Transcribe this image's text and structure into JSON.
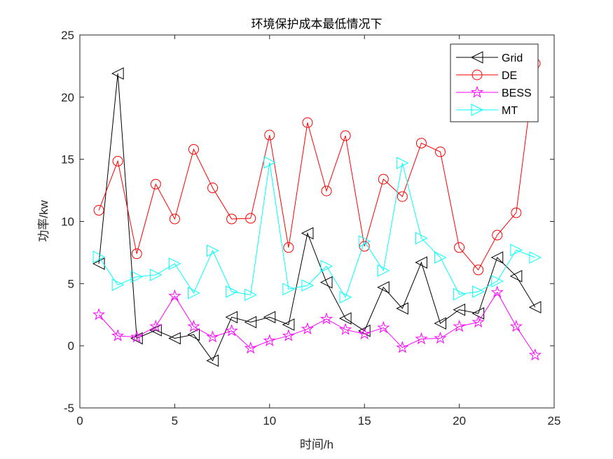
{
  "chart_data": {
    "type": "line",
    "title": "环境保护成本最低情况下",
    "xlabel": "时间/h",
    "ylabel": "功率/kw",
    "xlim": [
      0,
      25
    ],
    "ylim": [
      -5,
      25
    ],
    "xticks": [
      "0",
      "5",
      "10",
      "15",
      "20",
      "25"
    ],
    "yticks": [
      "-5",
      "0",
      "5",
      "10",
      "15",
      "20",
      "25"
    ],
    "grid": false,
    "legend_position": "top-right",
    "x": [
      1,
      2,
      3,
      4,
      5,
      6,
      7,
      8,
      9,
      10,
      11,
      12,
      13,
      14,
      15,
      16,
      17,
      18,
      19,
      20,
      21,
      22,
      23,
      24
    ],
    "series": [
      {
        "name": "Grid",
        "color": "#000000",
        "marker": "triangle-left",
        "values": [
          6.6,
          21.9,
          0.6,
          1.25,
          0.6,
          0.9,
          -1.2,
          2.3,
          1.9,
          2.3,
          1.7,
          9.05,
          5.1,
          2.2,
          1.2,
          4.7,
          3.0,
          6.7,
          1.8,
          2.9,
          2.6,
          7.1,
          5.6,
          3.1
        ]
      },
      {
        "name": "DE",
        "color": "#ff0000",
        "marker": "circle",
        "values": [
          10.9,
          14.85,
          7.4,
          13.0,
          10.2,
          15.8,
          12.7,
          10.2,
          10.25,
          16.95,
          7.9,
          17.95,
          12.45,
          16.9,
          8.0,
          13.4,
          12.0,
          16.3,
          15.6,
          7.9,
          6.1,
          8.9,
          10.7,
          22.7
        ]
      },
      {
        "name": "BESS",
        "color": "#ff00ff",
        "marker": "star",
        "values": [
          2.5,
          0.8,
          0.7,
          1.55,
          4.0,
          1.55,
          0.7,
          1.2,
          -0.2,
          0.4,
          0.8,
          1.35,
          2.15,
          1.3,
          0.95,
          1.45,
          -0.15,
          0.55,
          0.6,
          1.55,
          1.9,
          4.3,
          1.55,
          -0.75
        ]
      },
      {
        "name": "MT",
        "color": "#00ffff",
        "marker": "triangle-right",
        "values": [
          7.15,
          4.9,
          5.55,
          5.7,
          6.6,
          4.25,
          7.65,
          4.35,
          4.1,
          14.75,
          4.55,
          4.85,
          6.4,
          3.9,
          8.4,
          6.05,
          14.7,
          8.65,
          7.1,
          4.15,
          4.35,
          5.2,
          7.7,
          7.1
        ]
      }
    ]
  }
}
